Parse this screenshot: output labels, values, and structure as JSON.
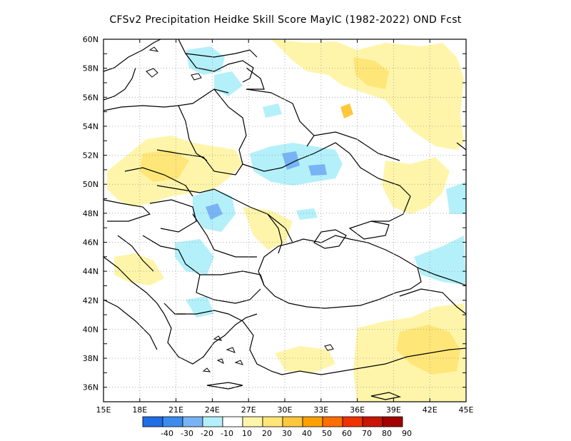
{
  "title": "CFSv2  Precipitation Heidke Skill Score MayIC (1982-2022) OND Fcst",
  "map": {
    "lon_labels": [
      "15E",
      "18E",
      "21E",
      "24E",
      "27E",
      "30E",
      "33E",
      "36E",
      "39E",
      "42E",
      "45E"
    ],
    "lat_labels": [
      "36N",
      "38N",
      "40N",
      "42N",
      "44N",
      "46N",
      "48N",
      "50N",
      "52N",
      "54N",
      "56N",
      "58N",
      "60N"
    ],
    "lon_range": [
      15,
      45
    ],
    "lat_range": [
      35,
      60
    ],
    "grid": "dotted"
  },
  "colorbar": {
    "labels": [
      "-40",
      "-30",
      "-20",
      "-10",
      "10",
      "20",
      "30",
      "40",
      "50",
      "60",
      "70",
      "80",
      "90"
    ],
    "colors": [
      "#1e6ee6",
      "#3c8cf0",
      "#78b4f5",
      "#b4f0fa",
      "#ffffff",
      "#fff5aa",
      "#ffe678",
      "#ffc83c",
      "#ffa000",
      "#ff6e00",
      "#f03200",
      "#c81400",
      "#a00000"
    ]
  },
  "colors": {
    "positive_weak": "#fff5aa",
    "positive_mid": "#ffe678",
    "positive_strong": "#ffc83c",
    "negative_weak": "#b4f0fa",
    "negative_mid": "#78b4f5",
    "negative_strong": "#3c8cf0"
  }
}
